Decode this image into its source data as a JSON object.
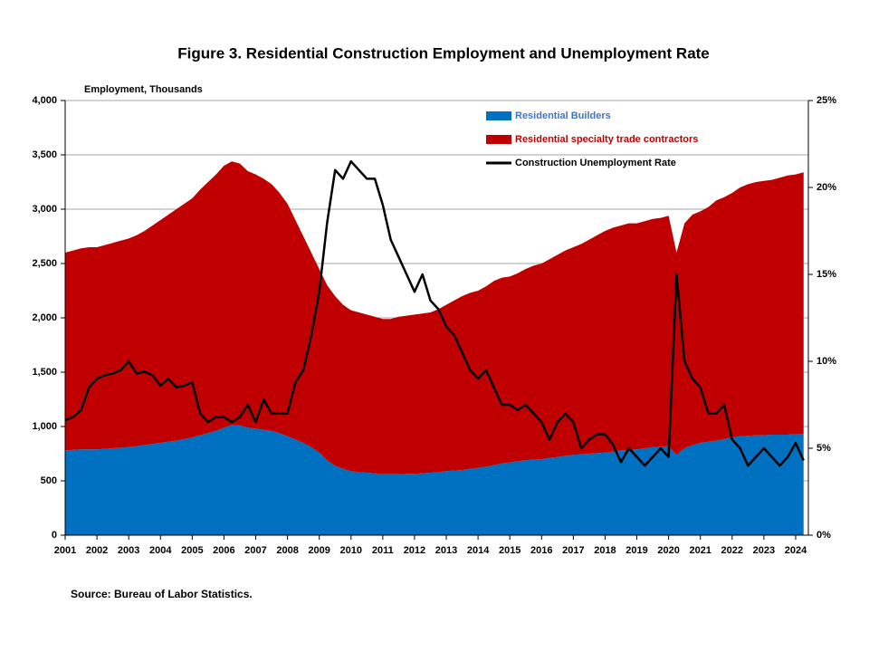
{
  "chart_data": {
    "type": "stacked-area-line",
    "title": "Figure 3. Residential Construction  Employment and Unemployment Rate",
    "y_label": "Employment, Thousands",
    "source": "Source: Bureau of Labor Statistics.",
    "x": [
      2001,
      2001.25,
      2001.5,
      2001.75,
      2002,
      2002.25,
      2002.5,
      2002.75,
      2003,
      2003.25,
      2003.5,
      2003.75,
      2004,
      2004.25,
      2004.5,
      2004.75,
      2005,
      2005.25,
      2005.5,
      2005.75,
      2006,
      2006.25,
      2006.5,
      2006.75,
      2007,
      2007.25,
      2007.5,
      2007.75,
      2008,
      2008.25,
      2008.5,
      2008.75,
      2009,
      2009.25,
      2009.5,
      2009.75,
      2010,
      2010.25,
      2010.5,
      2010.75,
      2011,
      2011.25,
      2011.5,
      2011.75,
      2012,
      2012.25,
      2012.5,
      2012.75,
      2013,
      2013.25,
      2013.5,
      2013.75,
      2014,
      2014.25,
      2014.5,
      2014.75,
      2015,
      2015.25,
      2015.5,
      2015.75,
      2016,
      2016.25,
      2016.5,
      2016.75,
      2017,
      2017.25,
      2017.5,
      2017.75,
      2018,
      2018.25,
      2018.5,
      2018.75,
      2019,
      2019.25,
      2019.5,
      2019.75,
      2020,
      2020.25,
      2020.5,
      2020.75,
      2021,
      2021.25,
      2021.5,
      2021.75,
      2022,
      2022.25,
      2022.5,
      2022.75,
      2023,
      2023.25,
      2023.5,
      2023.75,
      2024,
      2024.25
    ],
    "series": [
      {
        "name": "Residential Builders",
        "color": "#0070c0",
        "values": [
          780,
          785,
          790,
          790,
          790,
          795,
          800,
          805,
          810,
          820,
          830,
          840,
          850,
          860,
          870,
          885,
          900,
          920,
          940,
          960,
          990,
          1015,
          1010,
          990,
          980,
          970,
          960,
          940,
          910,
          880,
          850,
          810,
          760,
          690,
          640,
          610,
          590,
          580,
          575,
          570,
          560,
          560,
          560,
          565,
          565,
          570,
          575,
          580,
          590,
          595,
          600,
          610,
          620,
          630,
          645,
          660,
          670,
          680,
          690,
          695,
          700,
          710,
          720,
          730,
          740,
          745,
          750,
          755,
          760,
          770,
          780,
          785,
          790,
          800,
          810,
          815,
          820,
          740,
          800,
          830,
          850,
          860,
          870,
          885,
          900,
          910,
          915,
          920,
          920,
          925,
          925,
          925,
          930,
          930
        ]
      },
      {
        "name": "Residential specialty trade contractors",
        "color": "#c00000",
        "values": [
          1820,
          1835,
          1850,
          1860,
          1860,
          1875,
          1890,
          1905,
          1920,
          1940,
          1970,
          2010,
          2050,
          2090,
          2130,
          2165,
          2200,
          2260,
          2310,
          2360,
          2410,
          2425,
          2410,
          2360,
          2340,
          2310,
          2270,
          2210,
          2140,
          2020,
          1900,
          1790,
          1690,
          1610,
          1560,
          1510,
          1480,
          1470,
          1455,
          1440,
          1430,
          1430,
          1450,
          1455,
          1465,
          1470,
          1475,
          1500,
          1530,
          1565,
          1600,
          1620,
          1630,
          1660,
          1695,
          1710,
          1710,
          1730,
          1760,
          1785,
          1800,
          1830,
          1860,
          1890,
          1910,
          1935,
          1970,
          2005,
          2040,
          2060,
          2070,
          2085,
          2080,
          2090,
          2100,
          2105,
          2120,
          1860,
          2070,
          2120,
          2130,
          2160,
          2210,
          2225,
          2250,
          2290,
          2315,
          2330,
          2340,
          2345,
          2365,
          2385,
          2390,
          2410
        ]
      },
      {
        "name": "Construction Unemployment Rate",
        "color": "#000000",
        "axis": "y2",
        "values": [
          6.6,
          6.8,
          7.2,
          8.5,
          9.0,
          9.2,
          9.3,
          9.5,
          10.0,
          9.3,
          9.4,
          9.2,
          8.6,
          9.0,
          8.5,
          8.6,
          8.8,
          7.0,
          6.5,
          6.8,
          6.8,
          6.5,
          6.8,
          7.5,
          6.5,
          7.8,
          7.0,
          7.0,
          7.0,
          8.8,
          9.5,
          11.5,
          14,
          18,
          21,
          20.5,
          21.5,
          21,
          20.5,
          20.5,
          19,
          17,
          16,
          15,
          14,
          15,
          13.5,
          13,
          12,
          11.5,
          10.5,
          9.5,
          9,
          9.5,
          8.5,
          7.5,
          7.5,
          7.2,
          7.5,
          7.0,
          6.5,
          5.5,
          6.5,
          7.0,
          6.5,
          5.0,
          5.5,
          5.8,
          5.8,
          5.2,
          4.2,
          5.0,
          4.5,
          4.0,
          4.5,
          5.0,
          4.5,
          15.0,
          10.0,
          9.0,
          8.5,
          7.0,
          7.0,
          7.5,
          5.5,
          5.0,
          4.0,
          4.5,
          5.0,
          4.5,
          4.0,
          4.5,
          5.3,
          4.3
        ]
      }
    ],
    "xlim": [
      2001,
      2024.4
    ],
    "xticks": [
      2001,
      2002,
      2003,
      2004,
      2005,
      2006,
      2007,
      2008,
      2009,
      2010,
      2011,
      2012,
      2013,
      2014,
      2015,
      2016,
      2017,
      2018,
      2019,
      2020,
      2021,
      2022,
      2023,
      2024
    ],
    "ylim": [
      0,
      4000
    ],
    "yticks": [
      0,
      {
        "value": 500,
        "label": "500"
      },
      {
        "value": 1000,
        "label": "1,000"
      },
      {
        "value": 1500,
        "label": "1,500"
      },
      {
        "value": 2000,
        "label": "2,000"
      },
      {
        "value": 2500,
        "label": "2,500"
      },
      {
        "value": 3000,
        "label": "3,000"
      },
      {
        "value": 3500,
        "label": "3,500"
      },
      {
        "value": 4000,
        "label": "4,000"
      }
    ],
    "y2lim": [
      0,
      25
    ],
    "y2ticks": [
      {
        "value": 0,
        "label": "0%"
      },
      {
        "value": 5,
        "label": "5%"
      },
      {
        "value": 10,
        "label": "10%"
      },
      {
        "value": 15,
        "label": "15%"
      },
      {
        "value": 20,
        "label": "20%"
      },
      {
        "value": 25,
        "label": "25%"
      }
    ],
    "grid": true,
    "legend": "upper right"
  }
}
